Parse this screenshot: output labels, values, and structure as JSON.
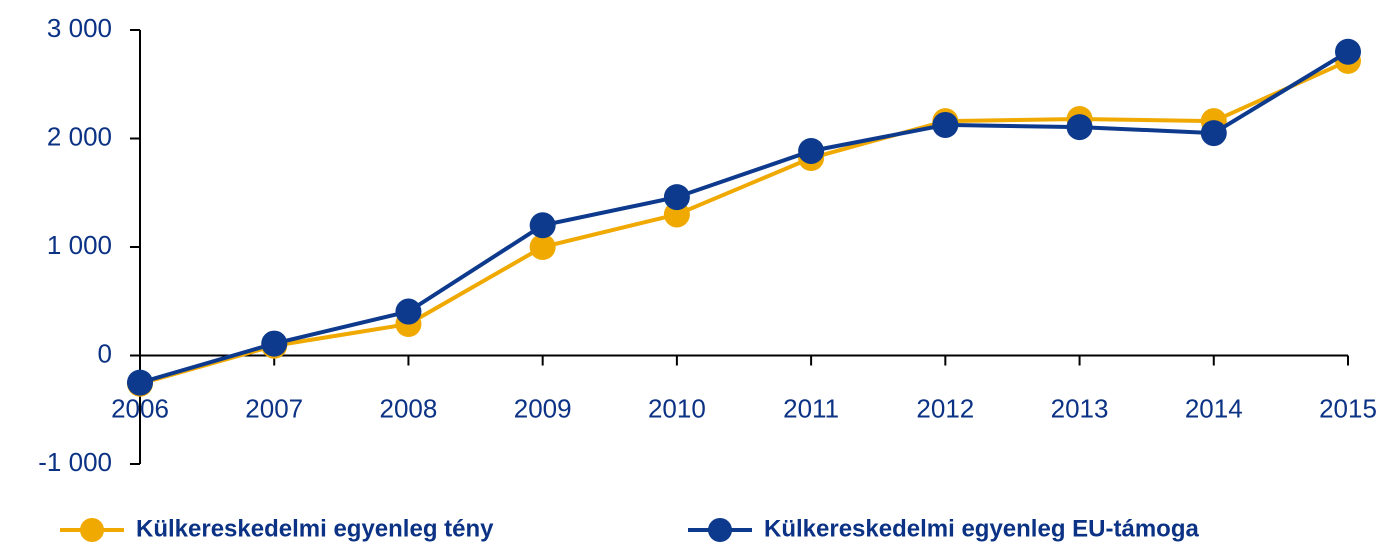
{
  "chart_data": {
    "type": "line",
    "categories": [
      "2006",
      "2007",
      "2008",
      "2009",
      "2010",
      "2011",
      "2012",
      "2013",
      "2014",
      "2015"
    ],
    "series": [
      {
        "name": "Külkereskedelmi egyenleg tény",
        "color": "#f0a900",
        "values": [
          -260,
          90,
          290,
          1000,
          1300,
          1820,
          2160,
          2180,
          2160,
          2715
        ]
      },
      {
        "name": "Külkereskedelmi egyenleg EU-támoga",
        "color": "#0d3a8c",
        "values": [
          -250,
          110,
          405,
          1200,
          1460,
          1885,
          2125,
          2105,
          2050,
          2800
        ]
      }
    ],
    "ylim": [
      -1000,
      3000
    ],
    "yticks": [
      {
        "value": -1000,
        "label": "-1 000"
      },
      0,
      {
        "value": 1000,
        "label": "1 000"
      },
      {
        "value": 2000,
        "label": "2 000"
      },
      {
        "value": 3000,
        "label": "3 000"
      }
    ]
  }
}
